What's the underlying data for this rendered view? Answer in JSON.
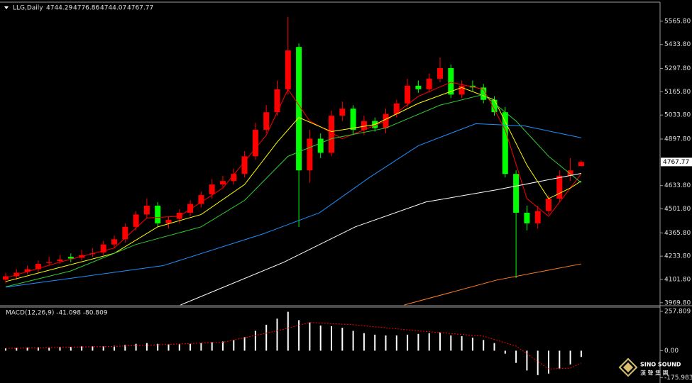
{
  "chart_data": [
    {
      "type": "candlestick",
      "header": {
        "symbol": "LLG,Daily",
        "values": [
          "4744.29",
          "4776.86",
          "4744.07",
          "4767.77"
        ]
      },
      "up_color": "#ff0000",
      "down_color": "#00ff00",
      "open": [
        4100,
        4120,
        4145,
        4160,
        4195,
        4205,
        4230,
        4225,
        4245,
        4255,
        4300,
        4330,
        4400,
        4470,
        4520,
        4420,
        4445,
        4480,
        4530,
        4585,
        4640,
        4660,
        4700,
        4800,
        4950,
        5050,
        5180,
        5420,
        4720,
        4900,
        4820,
        5030,
        5070,
        4950,
        5000,
        4960,
        5040,
        5100,
        5200,
        5180,
        5240,
        5300,
        5150,
        5200,
        5190,
        5120,
        5050,
        4700,
        4480,
        4420,
        4490,
        4560,
        4690,
        4744.29
      ],
      "high": [
        4140,
        4160,
        4180,
        4210,
        4230,
        4240,
        4250,
        4270,
        4280,
        4320,
        4350,
        4420,
        4490,
        4560,
        4540,
        4460,
        4500,
        4550,
        4600,
        4670,
        4690,
        4730,
        4830,
        4990,
        5090,
        5230,
        5590,
        5440,
        4950,
        4930,
        5060,
        5110,
        5090,
        5030,
        5020,
        5070,
        5120,
        5240,
        5230,
        5270,
        5360,
        5320,
        5230,
        5230,
        5210,
        5140,
        5080,
        4720,
        4520,
        4520,
        4580,
        4720,
        4790,
        4776.86
      ],
      "low": [
        4080,
        4100,
        4130,
        4140,
        4180,
        4190,
        4200,
        4210,
        4230,
        4240,
        4280,
        4310,
        4380,
        4450,
        4400,
        4390,
        4420,
        4460,
        4510,
        4560,
        4620,
        4640,
        4680,
        4780,
        4930,
        5030,
        5150,
        4400,
        4650,
        4790,
        4800,
        5000,
        4920,
        4920,
        4940,
        4930,
        5020,
        5080,
        5160,
        5160,
        5220,
        5130,
        5130,
        5170,
        5100,
        5030,
        4680,
        4110,
        4380,
        4390,
        4470,
        4540,
        4660,
        4744.07
      ],
      "close": [
        4120,
        4140,
        4160,
        4190,
        4200,
        4215,
        4220,
        4240,
        4250,
        4300,
        4330,
        4400,
        4470,
        4520,
        4420,
        4440,
        4480,
        4530,
        4580,
        4640,
        4660,
        4700,
        4800,
        4950,
        5050,
        5180,
        5400,
        4720,
        4900,
        4820,
        5030,
        5070,
        4950,
        5000,
        4960,
        5040,
        5100,
        5200,
        5180,
        5240,
        5300,
        5150,
        5200,
        5190,
        5120,
        5050,
        4700,
        4480,
        4420,
        4490,
        4560,
        4690,
        4720,
        4767.77
      ],
      "lines": [
        {
          "color": "#ff0000",
          "x": [
            0,
            5,
            10,
            13,
            16,
            20,
            24,
            26,
            28,
            31,
            35,
            38,
            41,
            44,
            46,
            48,
            50,
            52,
            53
          ],
          "values": [
            4110,
            4200,
            4280,
            4450,
            4460,
            4620,
            4920,
            5180,
            5000,
            4900,
            5000,
            5140,
            5220,
            5180,
            4950,
            4560,
            4460,
            4620,
            4700
          ]
        },
        {
          "color": "#ffff00",
          "x": [
            0,
            5,
            10,
            14,
            18,
            22,
            25,
            27,
            30,
            34,
            38,
            42,
            45,
            48,
            50,
            52,
            53
          ],
          "values": [
            4090,
            4170,
            4250,
            4400,
            4470,
            4640,
            4880,
            5020,
            4940,
            4980,
            5100,
            5190,
            5120,
            4750,
            4560,
            4620,
            4660
          ]
        },
        {
          "color": "#32cd32",
          "x": [
            0,
            6,
            12,
            18,
            22,
            26,
            30,
            35,
            40,
            44,
            47,
            50,
            52,
            53
          ],
          "values": [
            4060,
            4150,
            4300,
            4400,
            4550,
            4800,
            4900,
            4960,
            5090,
            5150,
            5000,
            4800,
            4700,
            4650
          ]
        },
        {
          "color": "#1e90ff",
          "x": [
            0,
            14.5,
            23.7,
            28.9,
            33.5,
            38,
            43.3,
            47.8,
            53
          ],
          "values": [
            4058,
            4180,
            4360,
            4480,
            4680,
            4860,
            4985,
            4972,
            4905
          ]
        },
        {
          "color": "#ffffff",
          "x": [
            16.1,
            25.6,
            32.2,
            38.7,
            45.2,
            53
          ],
          "values": [
            3957,
            4199,
            4400,
            4541,
            4610,
            4703
          ]
        },
        {
          "color": "#ff7f27",
          "x": [
            36.7,
            45.2,
            53
          ],
          "values": [
            3957,
            4098,
            4190
          ]
        }
      ],
      "ylim": [
        3957,
        5670
      ],
      "yticks": [
        {
          "value": 3969.8,
          "label": "3969.80"
        },
        {
          "value": 4101.8,
          "label": "4101.80"
        },
        {
          "value": 4233.8,
          "label": "4233.80"
        },
        {
          "value": 4365.8,
          "label": "4365.80"
        },
        {
          "value": 4501.8,
          "label": "4501.80"
        },
        {
          "value": 4633.8,
          "label": "4633.80"
        },
        {
          "value": 4897.8,
          "label": "4897.80"
        },
        {
          "value": 5033.8,
          "label": "5033.80"
        },
        {
          "value": 5165.8,
          "label": "5165.80"
        },
        {
          "value": 5297.8,
          "label": "5297.80"
        },
        {
          "value": 5433.8,
          "label": "5433.80"
        },
        {
          "value": 5565.8,
          "label": "5565.80"
        }
      ],
      "last_price": {
        "value": 4767.77,
        "label": "4767.77"
      }
    },
    {
      "type": "macd",
      "title": "MACD(12,26,9) -41.098 -80.809",
      "hist_color": "#ffffff",
      "signal_color": "#ff0000",
      "values": [
        15,
        18,
        20,
        22,
        22,
        25,
        25,
        28,
        28,
        30,
        32,
        38,
        45,
        50,
        45,
        42,
        42,
        45,
        50,
        55,
        60,
        70,
        90,
        130,
        170,
        210,
        255,
        200,
        185,
        165,
        160,
        150,
        130,
        115,
        105,
        100,
        100,
        105,
        110,
        115,
        120,
        100,
        95,
        85,
        70,
        50,
        -20,
        -80,
        -130,
        -160,
        -150,
        -120,
        -90,
        -41.098
      ],
      "signal": {
        "x": [
          0,
          10,
          20,
          25,
          28,
          32,
          38,
          44,
          47,
          50,
          52,
          53
        ],
        "values": [
          15,
          28,
          55,
          130,
          185,
          170,
          130,
          95,
          30,
          -120,
          -115,
          -80.809
        ]
      },
      "ylim": [
        -198,
        281
      ],
      "yticks": [
        {
          "value": -175.983,
          "label": "-175.983"
        },
        {
          "value": 0,
          "label": "0.00"
        },
        {
          "value": 257.809,
          "label": "257.809"
        }
      ]
    }
  ],
  "logo": {
    "name": "SINO SOUND",
    "chinese": "漢 聲 集 團"
  }
}
